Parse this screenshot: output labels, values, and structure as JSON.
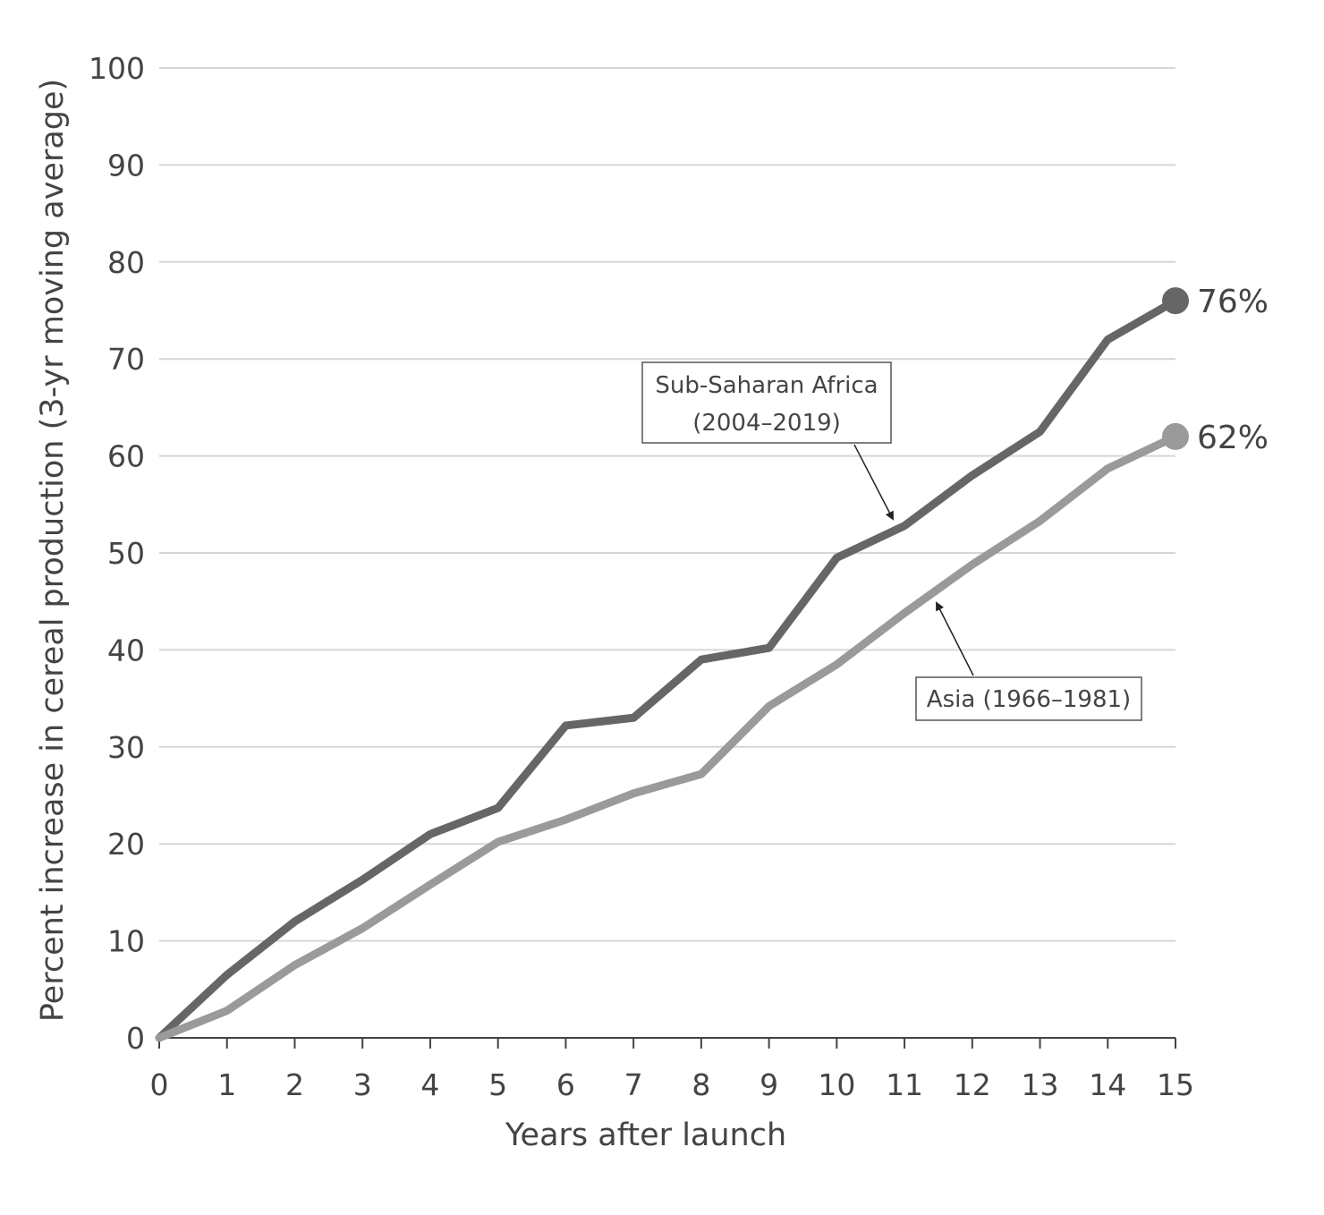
{
  "chart_data": {
    "type": "line",
    "title": "",
    "xlabel": "Years after launch",
    "ylabel": "Percent increase in cereal production (3-yr moving average)",
    "xlim": [
      0,
      15
    ],
    "ylim": [
      0,
      100
    ],
    "x_ticks": [
      0,
      1,
      2,
      3,
      4,
      5,
      6,
      7,
      8,
      9,
      10,
      11,
      12,
      13,
      14,
      15
    ],
    "y_ticks": [
      0,
      10,
      20,
      30,
      40,
      50,
      60,
      70,
      80,
      90,
      100
    ],
    "grid": "horizontal",
    "x": [
      0,
      1,
      2,
      3,
      4,
      5,
      6,
      7,
      8,
      9,
      10,
      11,
      12,
      13,
      14,
      15
    ],
    "series": [
      {
        "name": "Sub-Saharan Africa (2004–2019)",
        "values": [
          0,
          6.5,
          12,
          16.3,
          21,
          23.7,
          32.2,
          33,
          39,
          40.2,
          49.5,
          52.8,
          58,
          62.5,
          72,
          76
        ],
        "color": "#666666",
        "end_label": "76%"
      },
      {
        "name": "Asia (1966–1981)",
        "values": [
          0,
          2.8,
          7.5,
          11.3,
          15.8,
          20.2,
          22.5,
          25.2,
          27.2,
          34.2,
          38.5,
          43.8,
          48.8,
          53.3,
          58.7,
          62
        ],
        "color": "#9a9a9a",
        "end_label": "62%"
      }
    ],
    "annotations": {
      "ssa_line1": "Sub-Saharan Africa",
      "ssa_line2": "(2004–2019)",
      "asia": "Asia (1966–1981)"
    }
  }
}
